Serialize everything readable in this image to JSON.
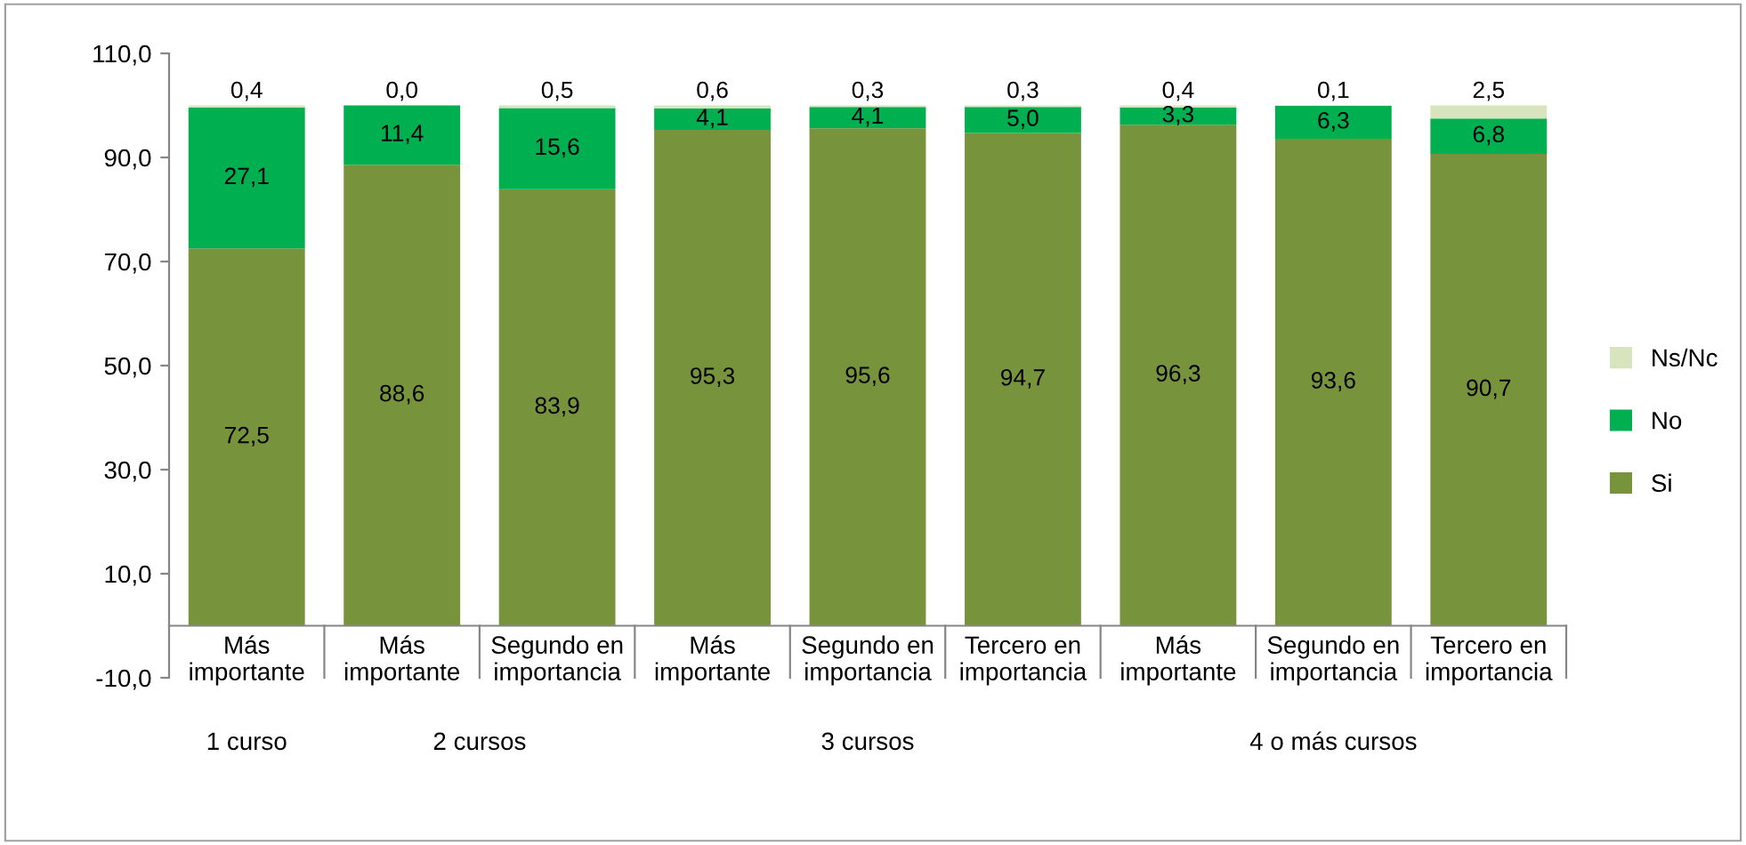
{
  "chart_data": {
    "type": "bar",
    "stacked": true,
    "categories": [
      "Más importante",
      "Más importante",
      "Segundo en importancia",
      "Más importante",
      "Segundo en importancia",
      "Tercero en importancia",
      "Más importante",
      "Segundo en importancia",
      "Tercero en importancia"
    ],
    "series": [
      {
        "name": "Si",
        "color": "#77933c",
        "values": [
          72.5,
          88.6,
          83.9,
          95.3,
          95.6,
          94.7,
          96.3,
          93.6,
          90.7
        ],
        "value_labels": [
          "72,5",
          "88,6",
          "83,9",
          "95,3",
          "95,6",
          "94,7",
          "96,3",
          "93,6",
          "90,7"
        ]
      },
      {
        "name": "No",
        "color": "#00b050",
        "values": [
          27.1,
          11.4,
          15.6,
          4.1,
          4.1,
          5.0,
          3.3,
          6.3,
          6.8
        ],
        "value_labels": [
          "27,1",
          "11,4",
          "15,6",
          "4,1",
          "4,1",
          "5,0",
          "3,3",
          "6,3",
          "6,8"
        ]
      },
      {
        "name": "Ns/Nc",
        "color": "#d7e4bd",
        "values": [
          0.4,
          0.0,
          0.5,
          0.6,
          0.3,
          0.3,
          0.4,
          0.1,
          2.5
        ],
        "value_labels": [
          "0,4",
          "0,0",
          "0,5",
          "0,6",
          "0,3",
          "0,3",
          "0,4",
          "0,1",
          "2,5"
        ]
      }
    ],
    "annotations": [
      "1 curso",
      "2 cursos",
      "3 cursos",
      "4 o más cursos"
    ],
    "ylim": [
      -10,
      110
    ],
    "yticks": [
      {
        "value": -10,
        "label": "-10,0"
      },
      {
        "value": 10,
        "label": "10,0"
      },
      {
        "value": 30,
        "label": "30,0"
      },
      {
        "value": 50,
        "label": "50,0"
      },
      {
        "value": 70,
        "label": "70,0"
      },
      {
        "value": 90,
        "label": "90,0"
      },
      {
        "value": 110,
        "label": "110,0"
      }
    ],
    "legend": "right",
    "grid": false
  }
}
